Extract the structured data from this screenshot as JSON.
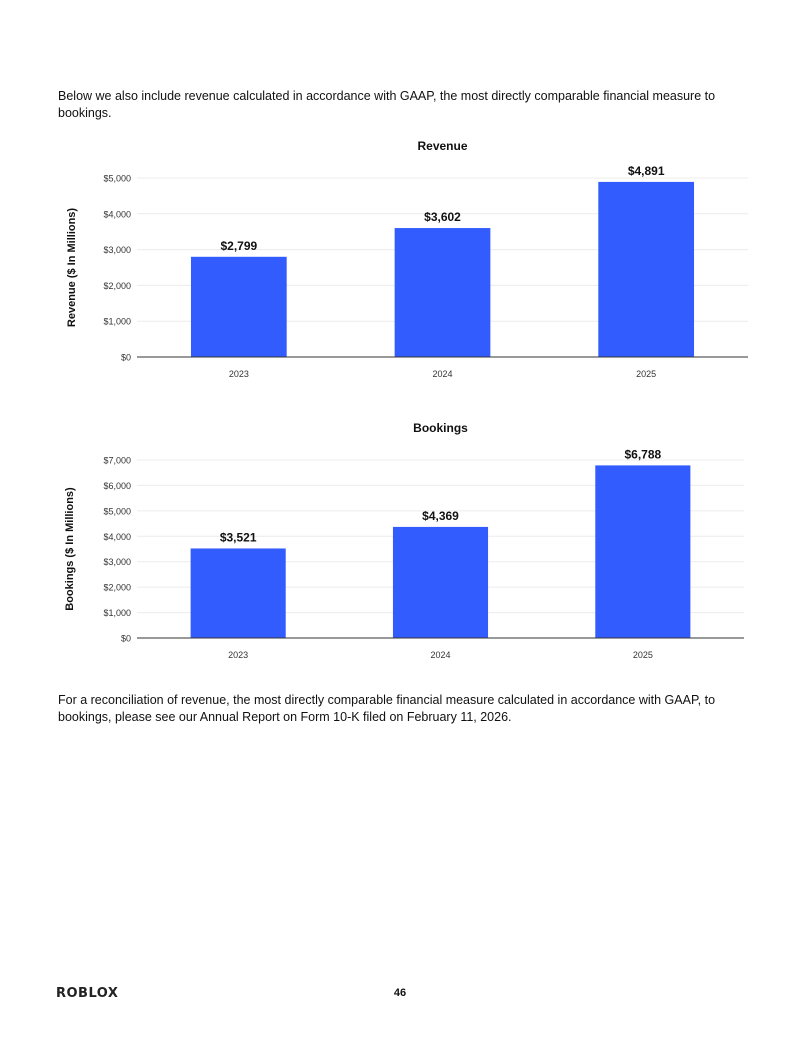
{
  "page": {
    "intro_text": "Below we also include revenue calculated in accordance with GAAP, the most directly comparable financial measure to bookings.",
    "outro_text": "For a reconciliation of revenue, the most directly comparable financial measure calculated in accordance with GAAP, to bookings, please see our Annual Report on Form 10-K filed on February 11, 2026.",
    "logo_text": "ROBLOX",
    "page_number": "46"
  },
  "colors": {
    "bar": "#335CFF",
    "grid": "#ececec",
    "axis": "#333333",
    "text": "#111111"
  },
  "chart_data": [
    {
      "type": "bar",
      "title": "Revenue",
      "xlabel": "",
      "ylabel": "Revenue ($ In Millions)",
      "categories": [
        "2023",
        "2024",
        "2025"
      ],
      "values": [
        2799,
        3602,
        4891
      ],
      "value_labels": [
        "$2,799",
        "$3,602",
        "$4,891"
      ],
      "ylim": [
        0,
        5000
      ],
      "yticks": [
        0,
        1000,
        2000,
        3000,
        4000,
        5000
      ],
      "ytick_labels": [
        "$0",
        "$1,000",
        "$2,000",
        "$3,000",
        "$4,000",
        "$5,000"
      ],
      "grid": true,
      "legend": "none"
    },
    {
      "type": "bar",
      "title": "Bookings",
      "xlabel": "",
      "ylabel": "Bookings ($ In Millions)",
      "categories": [
        "2023",
        "2024",
        "2025"
      ],
      "values": [
        3521,
        4369,
        6788
      ],
      "value_labels": [
        "$3,521",
        "$4,369",
        "$6,788"
      ],
      "ylim": [
        0,
        7000
      ],
      "yticks": [
        0,
        1000,
        2000,
        3000,
        4000,
        5000,
        6000,
        7000
      ],
      "ytick_labels": [
        "$0",
        "$1,000",
        "$2,000",
        "$3,000",
        "$4,000",
        "$5,000",
        "$6,000",
        "$7,000"
      ],
      "grid": true,
      "legend": "none"
    }
  ]
}
